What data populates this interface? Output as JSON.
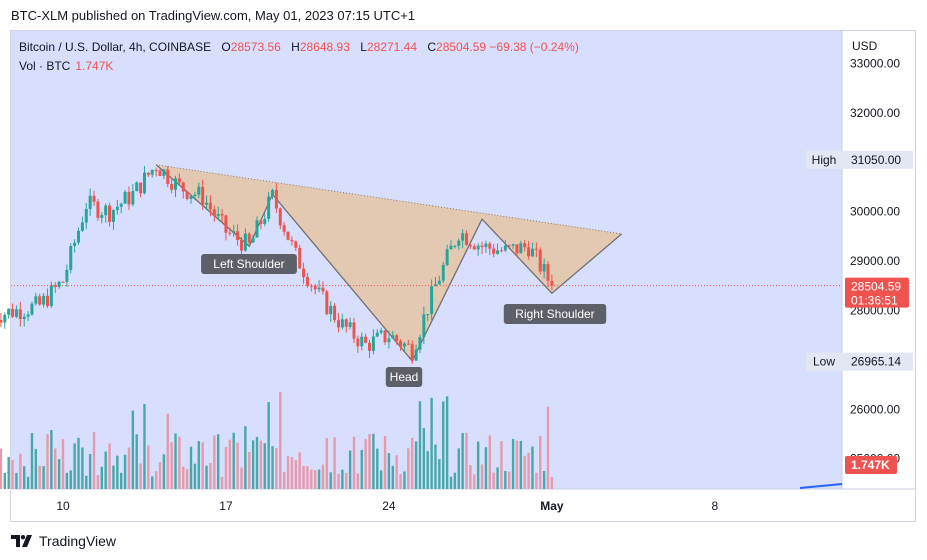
{
  "header": {
    "publisher_line": "BTC-XLM published on TradingView.com, May 01, 2023 07:15 UTC+1"
  },
  "legend": {
    "symbol": "Bitcoin / U.S. Dollar, 4h, COINBASE",
    "o_label": "O",
    "o_value": "28573.56",
    "h_label": "H",
    "h_value": "28648.93",
    "l_label": "L",
    "l_value": "28271.44",
    "c_label": "C",
    "c_value": "28504.59",
    "change": "−69.38 (−0.24%)",
    "vol_label": "Vol · BTC",
    "vol_value": "1.747K"
  },
  "price_axis": {
    "currency": "USD",
    "ticks": [
      "33000.00",
      "32000.00",
      "30000.00",
      "29000.00",
      "28000.00",
      "26000.00",
      "25000.00"
    ]
  },
  "markers": {
    "high_label": "High",
    "high_value": "31050.00",
    "low_label": "Low",
    "low_value": "26965.14",
    "last_price": "28504.59",
    "countdown": "01:36:51",
    "volume_last": "1.747K"
  },
  "pattern_labels": {
    "left": "Left Shoulder",
    "head": "Head",
    "right": "Right Shoulder"
  },
  "footer": {
    "brand": "TradingView"
  },
  "colors": {
    "up": "#26a69a",
    "down": "#ef5350",
    "background": "#d7dffc",
    "pattern_fill": "#e6c5a5",
    "volume_up": "#48a8a8",
    "volume_down": "#e799ad"
  },
  "chart_data": {
    "type": "candlestick",
    "symbol": "Bitcoin / U.S. Dollar",
    "interval": "4h",
    "exchange": "COINBASE",
    "x_ticks": [
      "10",
      "17",
      "24",
      "May",
      "8"
    ],
    "y_range": [
      24800,
      33200
    ],
    "y_ticks": [
      26000,
      28000,
      29000,
      30000,
      32000,
      33000
    ],
    "ohlc_path": [
      {
        "date": "2023-04-07",
        "close": 27900
      },
      {
        "date": "2023-04-09",
        "close": 28100
      },
      {
        "date": "2023-04-10",
        "close": 28600
      },
      {
        "date": "2023-04-11",
        "close": 30150
      },
      {
        "date": "2023-04-12",
        "close": 30000
      },
      {
        "date": "2023-04-13",
        "close": 30350
      },
      {
        "date": "2023-04-14",
        "close": 30950
      },
      {
        "date": "2023-04-15",
        "close": 30500
      },
      {
        "date": "2023-04-16",
        "close": 30300
      },
      {
        "date": "2023-04-17",
        "close": 29600
      },
      {
        "date": "2023-04-18",
        "close": 29300
      },
      {
        "date": "2023-04-19",
        "close": 30300
      },
      {
        "date": "2023-04-20",
        "close": 29100
      },
      {
        "date": "2023-04-21",
        "close": 28300
      },
      {
        "date": "2023-04-22",
        "close": 27700
      },
      {
        "date": "2023-04-23",
        "close": 27300
      },
      {
        "date": "2023-04-24",
        "close": 27500
      },
      {
        "date": "2023-04-25",
        "close": 27200
      },
      {
        "date": "2023-04-26",
        "close": 28500
      },
      {
        "date": "2023-04-27",
        "close": 29600
      },
      {
        "date": "2023-04-28",
        "close": 29300
      },
      {
        "date": "2023-04-29",
        "close": 29200
      },
      {
        "date": "2023-04-30",
        "close": 29300
      },
      {
        "date": "2023-05-01",
        "close": 28504.59
      }
    ],
    "series_high": 31050.0,
    "series_low": 26965.14,
    "last_close": 28504.59,
    "volume_last": "1.747K",
    "pattern": {
      "name": "Head and Shoulders",
      "points": [
        {
          "date": "2023-04-14",
          "price": 30950
        },
        {
          "date": "2023-04-18",
          "price": 29300
        },
        {
          "date": "2023-04-19",
          "price": 30350
        },
        {
          "date": "2023-04-25",
          "price": 26980
        },
        {
          "date": "2023-04-28",
          "price": 29850
        },
        {
          "date": "2023-05-01",
          "price": 28350
        }
      ]
    }
  }
}
